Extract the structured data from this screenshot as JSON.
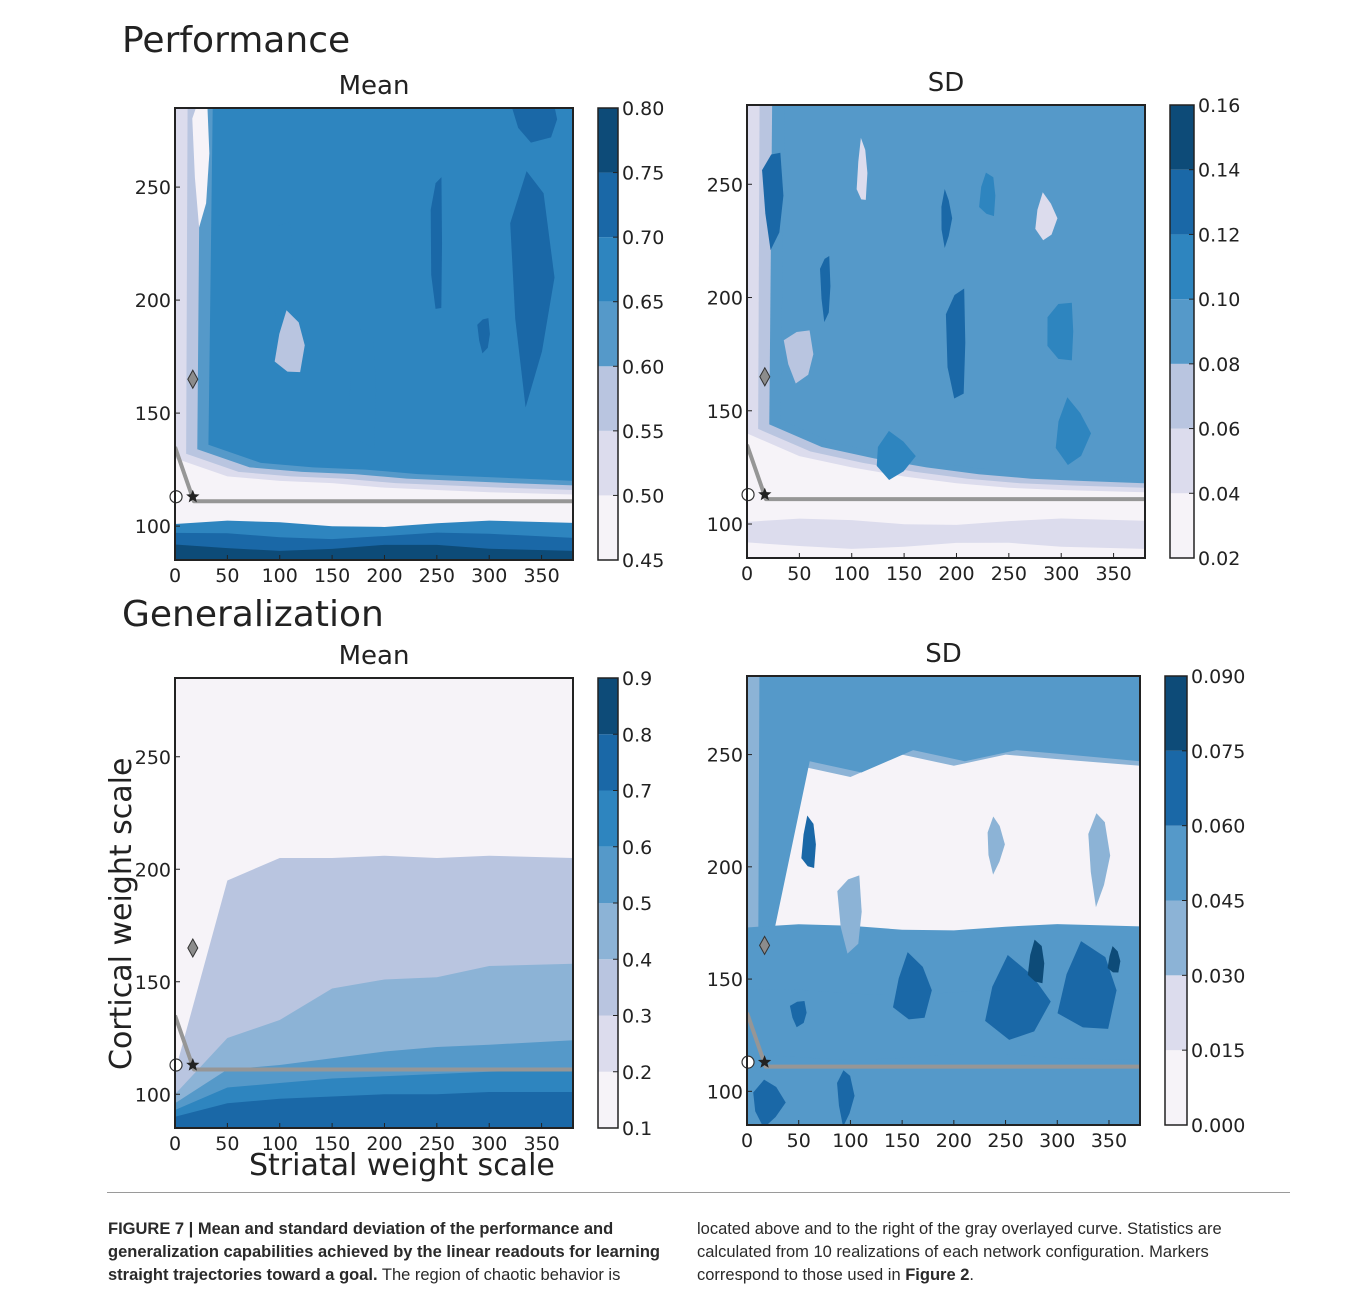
{
  "sections": {
    "performance": "Performance",
    "generalization": "Generalization"
  },
  "axis_labels": {
    "ylabel": "Cortical weight scale",
    "xlabel": "Striatal weight scale"
  },
  "caption": {
    "label": "FIGURE 7 | Mean and standard deviation of the performance and generalization capabilities achieved by the linear readouts for learning straight trajectories toward a goal.",
    "text_left": "The region of chaotic behavior is",
    "text_right_1": "located above and to the right of the gray overlayed curve. Statistics are calculated from 10 realizations of each network configuration. Markers correspond to those used in ",
    "text_right_ref": "Figure 2",
    "text_right_2": "."
  },
  "colors": {
    "levels": [
      "#f6f3f8",
      "#dcdced",
      "#b9c5e0",
      "#8cb3d6",
      "#5599c9",
      "#2e85bf",
      "#1a68a7",
      "#0d4b78"
    ],
    "curve": "#969696",
    "marker_fill": "#8c8c8c"
  },
  "chart_data": [
    {
      "type": "contour",
      "panel": "performance-mean",
      "title": "Mean",
      "x_ticks": [
        0,
        50,
        100,
        150,
        200,
        250,
        300,
        350
      ],
      "y_ticks": [
        100,
        150,
        200,
        250
      ],
      "xlim": [
        0,
        380
      ],
      "ylim": [
        85,
        285
      ],
      "colorbar": {
        "levels": [
          0.45,
          0.5,
          0.55,
          0.6,
          0.65,
          0.7,
          0.75,
          0.8
        ],
        "labels": [
          "0.45",
          "0.50",
          "0.55",
          "0.60",
          "0.65",
          "0.70",
          "0.75",
          "0.80"
        ]
      },
      "boundary_y": [
        130,
        122,
        120,
        119,
        117,
        116,
        115,
        114
      ],
      "band_values": [
        0.52,
        0.575,
        0.625,
        0.665
      ],
      "low_band_values": [
        0.67,
        0.71,
        0.75
      ],
      "blobs": [
        {
          "x": 25,
          "y": 265,
          "rx": 8,
          "ry": 30,
          "value": 0.48
        },
        {
          "x": 100,
          "y": 215,
          "rx": 14,
          "ry": 22,
          "value": 0.675
        },
        {
          "x": 250,
          "y": 225,
          "rx": 6,
          "ry": 32,
          "value": 0.71
        },
        {
          "x": 295,
          "y": 185,
          "rx": 6,
          "ry": 8,
          "value": 0.71
        },
        {
          "x": 340,
          "y": 210,
          "rx": 20,
          "ry": 50,
          "value": 0.705
        },
        {
          "x": 180,
          "y": 160,
          "rx": 14,
          "ry": 28,
          "value": 0.665
        },
        {
          "x": 110,
          "y": 180,
          "rx": 14,
          "ry": 14,
          "value": 0.575
        },
        {
          "x": 345,
          "y": 280,
          "rx": 22,
          "ry": 10,
          "value": 0.705
        }
      ],
      "curve": [
        [
          0,
          135
        ],
        [
          18,
          111
        ],
        [
          380,
          111
        ]
      ],
      "markers": [
        {
          "shape": "diamond",
          "x": 17,
          "y": 165
        },
        {
          "shape": "circle",
          "x": 1,
          "y": 113
        },
        {
          "shape": "star",
          "x": 17,
          "y": 113
        }
      ]
    },
    {
      "type": "contour",
      "panel": "performance-sd",
      "title": "SD",
      "x_ticks": [
        0,
        50,
        100,
        150,
        200,
        250,
        300,
        350
      ],
      "y_ticks": [
        100,
        150,
        200,
        250
      ],
      "xlim": [
        0,
        380
      ],
      "ylim": [
        85,
        285
      ],
      "colorbar": {
        "levels": [
          0.02,
          0.04,
          0.06,
          0.08,
          0.1,
          0.12,
          0.14,
          0.16
        ],
        "labels": [
          "0.02",
          "0.04",
          "0.06",
          "0.08",
          "0.10",
          "0.12",
          "0.14",
          "0.16"
        ]
      },
      "boundary_y": [
        140,
        130,
        125,
        121,
        118,
        116,
        115,
        114
      ],
      "band_values": [
        0.05,
        0.07,
        0.09,
        0.09
      ],
      "low_band_values": [
        0.05,
        0.04,
        0.03
      ],
      "blobs": [
        {
          "x": 25,
          "y": 245,
          "rx": 10,
          "ry": 22,
          "value": 0.13
        },
        {
          "x": 75,
          "y": 205,
          "rx": 5,
          "ry": 15,
          "value": 0.125
        },
        {
          "x": 200,
          "y": 180,
          "rx": 10,
          "ry": 26,
          "value": 0.125
        },
        {
          "x": 300,
          "y": 185,
          "rx": 14,
          "ry": 14,
          "value": 0.115
        },
        {
          "x": 50,
          "y": 175,
          "rx": 14,
          "ry": 12,
          "value": 0.07
        },
        {
          "x": 110,
          "y": 255,
          "rx": 5,
          "ry": 14,
          "value": 0.05
        },
        {
          "x": 285,
          "y": 235,
          "rx": 10,
          "ry": 10,
          "value": 0.05
        },
        {
          "x": 140,
          "y": 130,
          "rx": 18,
          "ry": 10,
          "value": 0.115
        },
        {
          "x": 310,
          "y": 140,
          "rx": 16,
          "ry": 14,
          "value": 0.115
        },
        {
          "x": 230,
          "y": 245,
          "rx": 8,
          "ry": 10,
          "value": 0.115
        },
        {
          "x": 190,
          "y": 235,
          "rx": 5,
          "ry": 12,
          "value": 0.125
        }
      ],
      "curve": [
        [
          0,
          135
        ],
        [
          18,
          111
        ],
        [
          380,
          111
        ]
      ],
      "markers": [
        {
          "shape": "diamond",
          "x": 17,
          "y": 165
        },
        {
          "shape": "circle",
          "x": 1,
          "y": 113
        },
        {
          "shape": "star",
          "x": 17,
          "y": 113
        }
      ]
    },
    {
      "type": "contour",
      "panel": "generalization-mean",
      "title": "Mean",
      "x_ticks": [
        0,
        50,
        100,
        150,
        200,
        250,
        300,
        350
      ],
      "y_ticks": [
        100,
        150,
        200,
        250
      ],
      "xlim": [
        0,
        380
      ],
      "ylim": [
        85,
        285
      ],
      "colorbar": {
        "levels": [
          0.1,
          0.2,
          0.3,
          0.4,
          0.5,
          0.6,
          0.7,
          0.8,
          0.9
        ],
        "labels": [
          "0.1",
          "0.2",
          "0.3",
          "0.4",
          "0.5",
          "0.6",
          "0.7",
          "0.8",
          "0.9"
        ]
      },
      "band_y": [
        {
          "value": 0.35,
          "y": [
            110,
            195,
            205,
            205,
            206,
            205,
            206,
            205
          ]
        },
        {
          "value": 0.45,
          "y": [
            100,
            125,
            133,
            147,
            151,
            152,
            157,
            158
          ]
        },
        {
          "value": 0.55,
          "y": [
            96,
            111,
            113,
            116,
            119,
            121,
            122,
            124
          ]
        },
        {
          "value": 0.65,
          "y": [
            93,
            103,
            105,
            107,
            108,
            109,
            110,
            111
          ]
        },
        {
          "value": 0.75,
          "y": [
            90,
            96,
            98,
            99,
            100,
            100,
            101,
            101
          ]
        }
      ],
      "curve": [
        [
          0,
          135
        ],
        [
          18,
          111
        ],
        [
          380,
          111
        ]
      ],
      "markers": [
        {
          "shape": "diamond",
          "x": 17,
          "y": 165
        },
        {
          "shape": "circle",
          "x": 1,
          "y": 113
        },
        {
          "shape": "star",
          "x": 17,
          "y": 113
        }
      ]
    },
    {
      "type": "contour",
      "panel": "generalization-sd",
      "title": "SD",
      "x_ticks": [
        0,
        50,
        100,
        150,
        200,
        250,
        300,
        350
      ],
      "y_ticks": [
        100,
        150,
        200,
        250
      ],
      "xlim": [
        0,
        380
      ],
      "ylim": [
        85,
        285
      ],
      "colorbar": {
        "levels": [
          0.0,
          0.015,
          0.03,
          0.045,
          0.06,
          0.075,
          0.09
        ],
        "labels": [
          "0.000",
          "0.015",
          "0.030",
          "0.045",
          "0.060",
          "0.075",
          "0.090"
        ]
      },
      "boundary_y": [
        135,
        245,
        240,
        250,
        245,
        250,
        248,
        245
      ],
      "band_values": [
        0.038,
        0.052
      ],
      "low_band_values": [
        0.052,
        0.052,
        0.052
      ],
      "blobs": [
        {
          "x": 60,
          "y": 210,
          "rx": 7,
          "ry": 12,
          "value": 0.065
        },
        {
          "x": 160,
          "y": 145,
          "rx": 18,
          "ry": 15,
          "value": 0.065
        },
        {
          "x": 260,
          "y": 140,
          "rx": 30,
          "ry": 18,
          "value": 0.065
        },
        {
          "x": 330,
          "y": 145,
          "rx": 28,
          "ry": 20,
          "value": 0.065
        },
        {
          "x": 280,
          "y": 157,
          "rx": 8,
          "ry": 10,
          "value": 0.08
        },
        {
          "x": 355,
          "y": 158,
          "rx": 6,
          "ry": 6,
          "value": 0.08
        },
        {
          "x": 50,
          "y": 135,
          "rx": 8,
          "ry": 6,
          "value": 0.065
        },
        {
          "x": 100,
          "y": 180,
          "rx": 12,
          "ry": 18,
          "value": 0.038
        },
        {
          "x": 240,
          "y": 210,
          "rx": 8,
          "ry": 12,
          "value": 0.038
        },
        {
          "x": 340,
          "y": 205,
          "rx": 10,
          "ry": 20,
          "value": 0.038
        },
        {
          "x": 20,
          "y": 95,
          "rx": 15,
          "ry": 10,
          "value": 0.065
        },
        {
          "x": 95,
          "y": 98,
          "rx": 8,
          "ry": 12,
          "value": 0.065
        }
      ],
      "curve": [
        [
          0,
          135
        ],
        [
          18,
          111
        ],
        [
          380,
          111
        ]
      ],
      "markers": [
        {
          "shape": "diamond",
          "x": 17,
          "y": 165
        },
        {
          "shape": "circle",
          "x": 1,
          "y": 113
        },
        {
          "shape": "star",
          "x": 17,
          "y": 113
        }
      ]
    }
  ]
}
